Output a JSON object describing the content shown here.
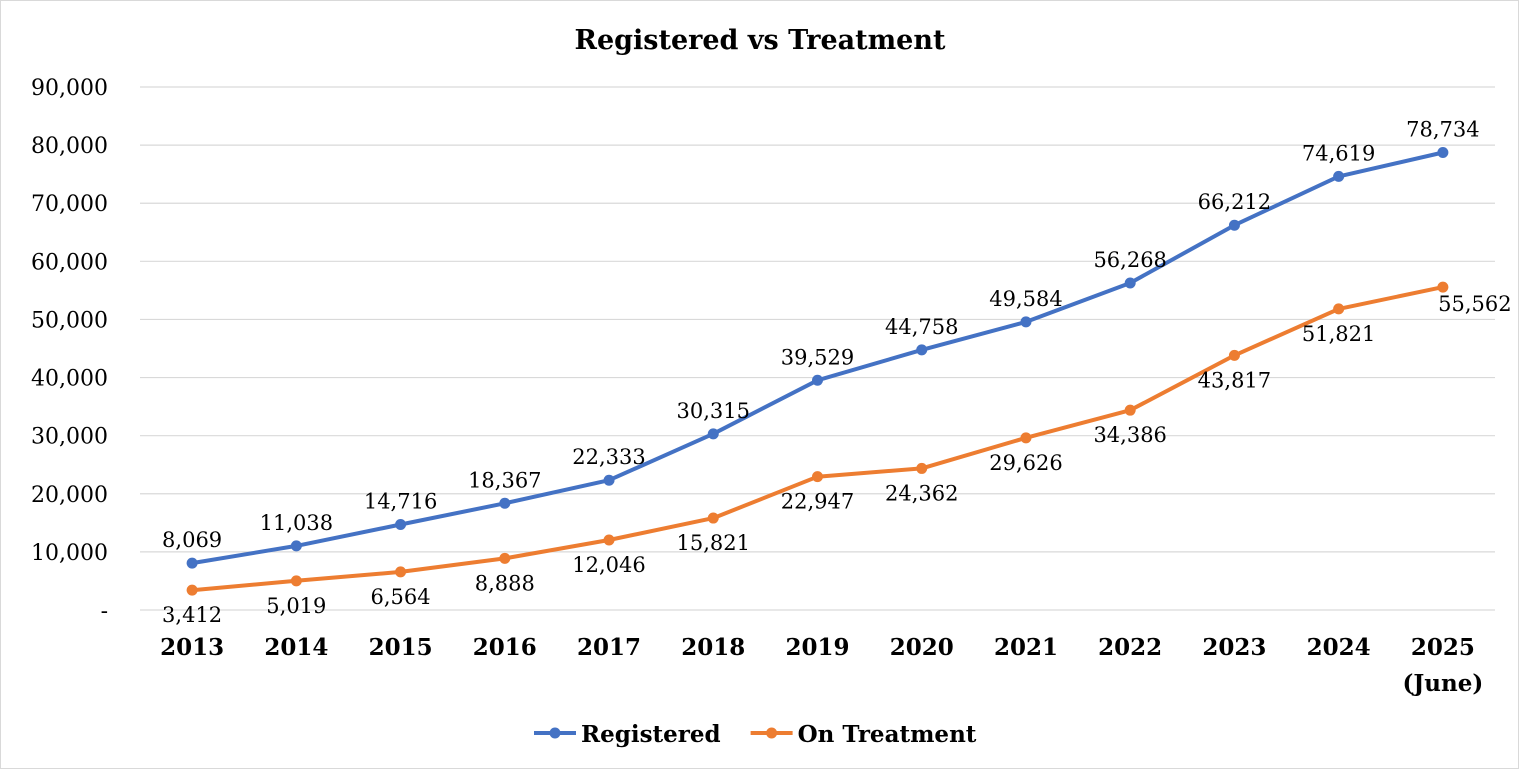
{
  "chart_data": {
    "type": "line",
    "title": "Registered vs Treatment",
    "xlabel": "",
    "ylabel": "",
    "categories": [
      [
        "2013"
      ],
      [
        "2014"
      ],
      [
        "2015"
      ],
      [
        "2016"
      ],
      [
        "2017"
      ],
      [
        "2018"
      ],
      [
        "2019"
      ],
      [
        "2020"
      ],
      [
        "2021"
      ],
      [
        "2022"
      ],
      [
        "2023"
      ],
      [
        "2024"
      ],
      [
        "2025",
        "(June)"
      ]
    ],
    "ylim": [
      0,
      90000
    ],
    "yticks": [
      {
        "value": 0,
        "label": "-"
      },
      {
        "value": 10000,
        "label": "10,000"
      },
      {
        "value": 20000,
        "label": "20,000"
      },
      {
        "value": 30000,
        "label": "30,000"
      },
      {
        "value": 40000,
        "label": "40,000"
      },
      {
        "value": 50000,
        "label": "50,000"
      },
      {
        "value": 60000,
        "label": "60,000"
      },
      {
        "value": 70000,
        "label": "70,000"
      },
      {
        "value": 80000,
        "label": "80,000"
      },
      {
        "value": 90000,
        "label": "90,000"
      }
    ],
    "grid": true,
    "legend_position": "bottom",
    "series": [
      {
        "name": "Registered",
        "color": "#4472c4",
        "label_position": "above",
        "values": [
          8069,
          11038,
          14716,
          18367,
          22333,
          30315,
          39529,
          44758,
          49584,
          56268,
          66212,
          74619,
          78734
        ],
        "labels": [
          "8,069",
          "11,038",
          "14,716",
          "18,367",
          "22,333",
          "30,315",
          "39,529",
          "44,758",
          "49,584",
          "56,268",
          "66,212",
          "74,619",
          "78,734"
        ]
      },
      {
        "name": "On Treatment",
        "color": "#ed7d31",
        "label_position": "below",
        "values": [
          3412,
          5019,
          6564,
          8888,
          12046,
          15821,
          22947,
          24362,
          29626,
          34386,
          43817,
          51821,
          55562
        ],
        "labels": [
          "3,412",
          "5,019",
          "6,564",
          "8,888",
          "12,046",
          "15,821",
          "22,947",
          "24,362",
          "29,626",
          "34,386",
          "43,817",
          "51,821",
          "55,562"
        ]
      }
    ]
  }
}
